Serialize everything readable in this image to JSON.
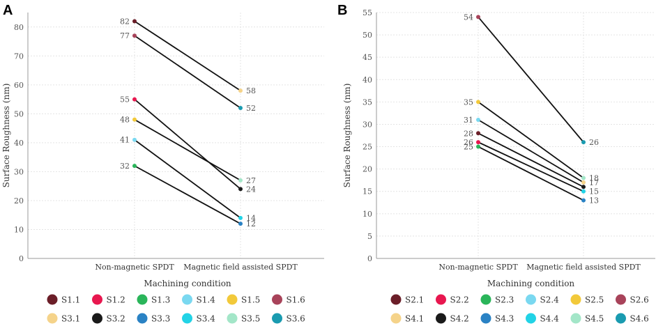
{
  "chart_data": [
    {
      "panel": "A",
      "type": "line",
      "categories": [
        "Non-magnetic SPDT",
        "Magnetic field assisted SPDT"
      ],
      "xlabel": "Machining condition",
      "ylabel": "Surface Roughness (nm)",
      "ylim": [
        0,
        85
      ],
      "yticks": [
        0,
        10,
        20,
        30,
        40,
        50,
        60,
        70,
        80
      ],
      "grid": true,
      "series": [
        {
          "from": "S1.1",
          "to": "S3.1",
          "values": [
            82,
            58
          ],
          "from_color": "#6b1e28",
          "to_color": "#f5d38a",
          "from_label": "82",
          "to_label": "58"
        },
        {
          "from": "S1.6",
          "to": "S3.6",
          "values": [
            77,
            52
          ],
          "from_color": "#a8435a",
          "to_color": "#1a9bb0",
          "from_label": "77",
          "to_label": "52"
        },
        {
          "from": "S1.2",
          "to": "S3.2",
          "values": [
            55,
            24
          ],
          "from_color": "#e8174f",
          "to_color": "#1a1a1a",
          "from_label": "55",
          "to_label": "24"
        },
        {
          "from": "S1.5",
          "to": "S3.5",
          "values": [
            48,
            27
          ],
          "from_color": "#f2c93a",
          "to_color": "#a3e6c8",
          "from_label": "48",
          "to_label": "27"
        },
        {
          "from": "S1.4",
          "to": "S3.4",
          "values": [
            41,
            14
          ],
          "from_color": "#7ad8f0",
          "to_color": "#22d3e6",
          "from_label": "41",
          "to_label": "14"
        },
        {
          "from": "S1.3",
          "to": "S3.3",
          "values": [
            32,
            12
          ],
          "from_color": "#2ab55a",
          "to_color": "#2a82c4",
          "from_label": "32",
          "to_label": "12"
        }
      ],
      "legend": [
        {
          "label": "S1.1",
          "color": "#6b1e28"
        },
        {
          "label": "S1.2",
          "color": "#e8174f"
        },
        {
          "label": "S1.3",
          "color": "#2ab55a"
        },
        {
          "label": "S1.4",
          "color": "#7ad8f0"
        },
        {
          "label": "S1.5",
          "color": "#f2c93a"
        },
        {
          "label": "S1.6",
          "color": "#a8435a"
        },
        {
          "label": "S3.1",
          "color": "#f5d38a"
        },
        {
          "label": "S3.2",
          "color": "#1a1a1a"
        },
        {
          "label": "S3.3",
          "color": "#2a82c4"
        },
        {
          "label": "S3.4",
          "color": "#22d3e6"
        },
        {
          "label": "S3.5",
          "color": "#a3e6c8"
        },
        {
          "label": "S3.6",
          "color": "#1a9bb0"
        }
      ]
    },
    {
      "panel": "B",
      "type": "line",
      "categories": [
        "Non-magnetic SPDT",
        "Magnetic field assisted SPDT"
      ],
      "xlabel": "Machining condition",
      "ylabel": "Surface Roughness (nm)",
      "ylim": [
        0,
        55
      ],
      "yticks": [
        0,
        5,
        10,
        15,
        20,
        25,
        30,
        35,
        40,
        45,
        50,
        55
      ],
      "grid": true,
      "series": [
        {
          "from": "S2.6",
          "to": "S4.6",
          "values": [
            54,
            26
          ],
          "from_color": "#a8435a",
          "to_color": "#1a9bb0",
          "from_label": "54",
          "to_label": "26"
        },
        {
          "from": "S2.5",
          "to": "S4.5",
          "values": [
            35,
            18
          ],
          "from_color": "#f2c93a",
          "to_color": "#a3e6c8",
          "from_label": "35",
          "to_label": "18"
        },
        {
          "from": "S2.4",
          "to": "S4.1",
          "values": [
            31,
            17
          ],
          "from_color": "#7ad8f0",
          "to_color": "#f5d38a",
          "from_label": "31",
          "to_label": "17"
        },
        {
          "from": "S2.1",
          "to": "S4.2",
          "values": [
            28,
            16
          ],
          "from_color": "#6b1e28",
          "to_color": "#1a1a1a",
          "from_label": "28",
          "to_label": ""
        },
        {
          "from": "S2.2",
          "to": "S4.4",
          "values": [
            26,
            15
          ],
          "from_color": "#e8174f",
          "to_color": "#22d3e6",
          "from_label": "26",
          "to_label": "15"
        },
        {
          "from": "S2.3",
          "to": "S4.3",
          "values": [
            25,
            13
          ],
          "from_color": "#2ab55a",
          "to_color": "#2a82c4",
          "from_label": "25",
          "to_label": "13"
        }
      ],
      "legend": [
        {
          "label": "S2.1",
          "color": "#6b1e28"
        },
        {
          "label": "S2.2",
          "color": "#e8174f"
        },
        {
          "label": "S2.3",
          "color": "#2ab55a"
        },
        {
          "label": "S2.4",
          "color": "#7ad8f0"
        },
        {
          "label": "S2.5",
          "color": "#f2c93a"
        },
        {
          "label": "S2.6",
          "color": "#a8435a"
        },
        {
          "label": "S4.1",
          "color": "#f5d38a"
        },
        {
          "label": "S4.2",
          "color": "#1a1a1a"
        },
        {
          "label": "S4.3",
          "color": "#2a82c4"
        },
        {
          "label": "S4.4",
          "color": "#22d3e6"
        },
        {
          "label": "S4.5",
          "color": "#a3e6c8"
        },
        {
          "label": "S4.6",
          "color": "#1a9bb0"
        }
      ]
    }
  ]
}
